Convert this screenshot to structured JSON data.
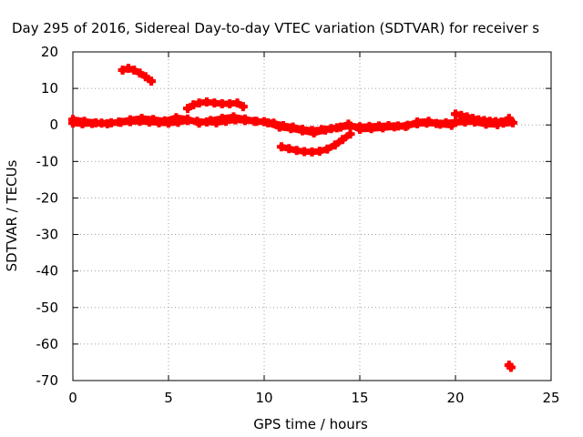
{
  "chart_data": {
    "type": "scatter",
    "title": "Day 295 of 2016, Sidereal Day-to-day VTEC variation (SDTVAR) for receiver s",
    "xlabel": "GPS time / hours",
    "ylabel": "SDTVAR / TECUs",
    "xlim": [
      0,
      25
    ],
    "ylim": [
      -70,
      20
    ],
    "x_ticks": [
      "0",
      "5",
      "10",
      "15",
      "20",
      "25"
    ],
    "y_ticks": [
      "20",
      "10",
      "0",
      "-10",
      "-20",
      "-30",
      "-40",
      "-50",
      "-60",
      "-70"
    ],
    "grid": true,
    "marker_color": "#ff0000",
    "series": [
      {
        "x": [
          0.0,
          0.5,
          1.0,
          1.5,
          2.0,
          2.5,
          3.0,
          3.5,
          4.0,
          4.5,
          5.0,
          5.5,
          6.0,
          6.5,
          7.0,
          7.5,
          8.0,
          8.5,
          9.0,
          9.5,
          10.0,
          10.5,
          11.0,
          11.5,
          12.0,
          12.5,
          13.0,
          13.5,
          14.0,
          14.5,
          15.0,
          15.5,
          16.0,
          16.5,
          17.0,
          17.5,
          18.0,
          18.5,
          19.0,
          19.5,
          20.0,
          20.5,
          21.0,
          21.5,
          22.0,
          22.5,
          23.0
        ],
        "y": [
          0.5,
          0.3,
          0.4,
          0.5,
          0.6,
          0.7,
          0.9,
          1.0,
          0.8,
          0.6,
          0.5,
          0.7,
          1.2,
          1.0,
          0.8,
          0.6,
          1.0,
          1.4,
          1.2,
          1.0,
          0.9,
          0.5,
          -0.2,
          -0.6,
          -1.2,
          -1.5,
          -1.3,
          -1.0,
          -0.6,
          -0.3,
          -0.5,
          -0.4,
          -0.3,
          -0.2,
          -0.3,
          -0.1,
          0.3,
          0.5,
          0.4,
          0.6,
          0.7,
          0.8,
          0.9,
          0.7,
          0.6,
          0.5,
          0.6
        ]
      },
      {
        "x": [
          0.0,
          0.6,
          1.2,
          1.8,
          2.4,
          3.0,
          3.6,
          4.2,
          4.8,
          5.4,
          6.0,
          6.6,
          7.2,
          7.8,
          8.4,
          9.0,
          9.6,
          10.2,
          10.8,
          11.4,
          12.0,
          12.6,
          13.2,
          13.8,
          14.4,
          15.0,
          15.6,
          16.2,
          16.8,
          17.4,
          18.0,
          18.6,
          19.2,
          19.8,
          20.4,
          21.0,
          21.6,
          22.2,
          22.8
        ],
        "y": [
          1.5,
          1.0,
          0.6,
          0.3,
          0.8,
          1.4,
          1.8,
          1.5,
          1.1,
          2.0,
          1.6,
          0.5,
          1.2,
          1.8,
          2.2,
          1.6,
          1.0,
          0.6,
          -0.6,
          -1.0,
          -1.6,
          -2.2,
          -1.4,
          -0.8,
          0.2,
          -1.2,
          -1.0,
          -0.8,
          -0.5,
          -0.4,
          0.8,
          1.0,
          0.2,
          -0.1,
          1.5,
          0.8,
          0.2,
          0.1,
          1.8
        ]
      },
      {
        "x": [
          2.6,
          2.9,
          3.2,
          3.5,
          3.8,
          4.1
        ],
        "y": [
          15.0,
          15.5,
          15.0,
          14.2,
          13.2,
          12.0
        ]
      },
      {
        "x": [
          6.0,
          6.3,
          6.6,
          7.0,
          7.4,
          7.8,
          8.2,
          8.6,
          8.9
        ],
        "y": [
          4.5,
          5.5,
          6.0,
          6.3,
          6.0,
          5.8,
          5.8,
          6.0,
          5.0
        ]
      },
      {
        "x": [
          10.9,
          11.3,
          11.7,
          12.1,
          12.5,
          12.9,
          13.3,
          13.7,
          14.1,
          14.5
        ],
        "y": [
          -6.0,
          -6.5,
          -7.0,
          -7.3,
          -7.4,
          -7.2,
          -6.6,
          -5.5,
          -4.0,
          -2.5
        ]
      },
      {
        "x": [
          20.0,
          20.3,
          20.6,
          20.9,
          21.2,
          21.5,
          21.8,
          22.1,
          22.4,
          22.7,
          22.9
        ],
        "y": [
          3.0,
          2.6,
          2.2,
          1.8,
          1.4,
          1.2,
          1.0,
          0.9,
          0.8,
          0.8,
          0.9
        ]
      },
      {
        "x": [
          22.8,
          22.9
        ],
        "y": [
          -65.8,
          -66.4
        ]
      }
    ]
  }
}
